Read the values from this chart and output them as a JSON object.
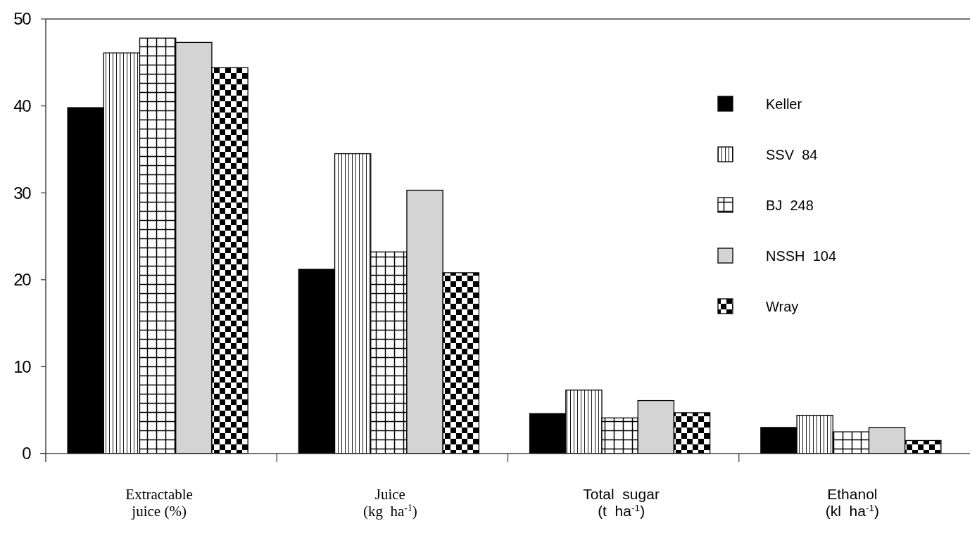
{
  "chart_data": {
    "type": "bar",
    "categories": [
      "Extractable\njuice (%)",
      "Juice\n(kg  ha$^{-1}$)",
      "Total  sugar\n(t  ha$^{-1}$)",
      "Ethanol\n(kl  ha$^{-1}$)"
    ],
    "series": [
      {
        "name": "Keller",
        "color": "#000000",
        "values": [
          39.8,
          21.2,
          4.6,
          3.0
        ]
      },
      {
        "name": "SSV  84",
        "color": "#ffffff",
        "values": [
          46.1,
          34.5,
          7.3,
          4.4
        ]
      },
      {
        "name": "BJ  248",
        "color": "#ffffff",
        "values": [
          47.8,
          23.2,
          4.1,
          2.5
        ]
      },
      {
        "name": "NSSH  104",
        "color": "#d4d4d4",
        "values": [
          47.3,
          30.3,
          6.1,
          3.0
        ]
      },
      {
        "name": "Wray",
        "color": "#ffffff",
        "values": [
          44.4,
          20.8,
          4.7,
          1.5
        ]
      }
    ],
    "ylim": [
      0,
      50
    ],
    "yticks": [
      0,
      10,
      20,
      30,
      40,
      50
    ],
    "legend": "top right",
    "grid": false
  }
}
